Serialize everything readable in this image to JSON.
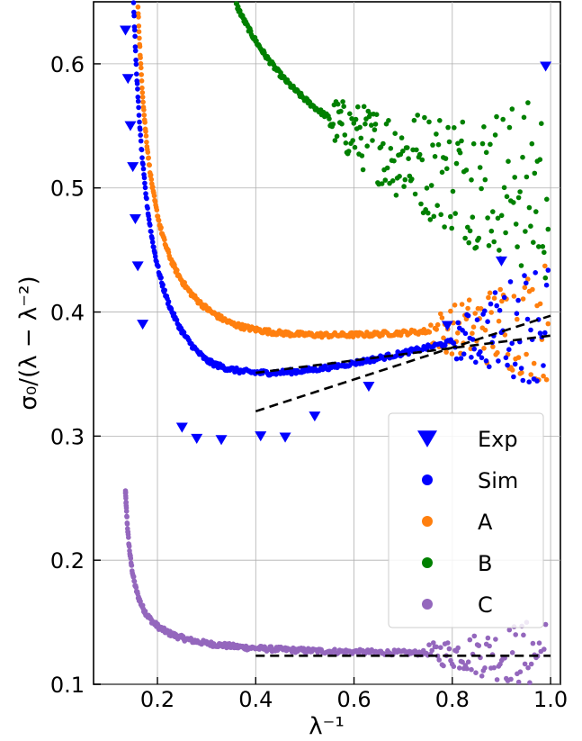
{
  "chart_data": {
    "type": "scatter",
    "xlabel": "λ⁻¹",
    "ylabel": "σ₀/(λ − λ⁻²)",
    "xlim": [
      0.07,
      1.02
    ],
    "ylim": [
      0.1,
      0.65
    ],
    "x_ticks": [
      0.2,
      0.4,
      0.6,
      0.8,
      1.0
    ],
    "x_tick_labels": [
      "0.2",
      "0.4",
      "0.6",
      "0.8",
      "1.0"
    ],
    "y_ticks": [
      0.1,
      0.2,
      0.3,
      0.4,
      0.5,
      0.6
    ],
    "y_tick_labels": [
      "0.1",
      "0.2",
      "0.3",
      "0.4",
      "0.5",
      "0.6"
    ],
    "grid": true,
    "legend_position": "lower-right",
    "series": [
      {
        "name": "Exp",
        "marker": "triangle-down",
        "color": "#0000ff",
        "x": [
          0.135,
          0.14,
          0.145,
          0.15,
          0.155,
          0.16,
          0.17,
          0.25,
          0.28,
          0.33,
          0.41,
          0.46,
          0.52,
          0.63,
          0.79,
          0.9,
          0.99
        ],
        "y": [
          0.627,
          0.588,
          0.55,
          0.517,
          0.475,
          0.437,
          0.39,
          0.307,
          0.298,
          0.297,
          0.3,
          0.299,
          0.316,
          0.34,
          0.389,
          0.441,
          0.598
        ]
      },
      {
        "name": "Sim",
        "marker": "circle",
        "color": "#0000ff",
        "curve": {
          "a": 0.011,
          "x0": 0.12,
          "c": 0.3,
          "ref": 0.3,
          "s": 0.12,
          "xmin": 0.145,
          "xmax": 0.995,
          "noise_from": 0.8,
          "noise": 0.045
        }
      },
      {
        "name": "A",
        "marker": "circle",
        "color": "#ff7f0e",
        "curve": {
          "a": 0.009,
          "x0": 0.13,
          "c": 0.35,
          "ref": 0.35,
          "s": 0.05,
          "xmin": 0.155,
          "xmax": 0.995,
          "noise_from": 0.75,
          "noise": 0.04
        }
      },
      {
        "name": "B",
        "marker": "circle",
        "color": "#008000",
        "curve": {
          "a": 0.05,
          "x0": 0.12,
          "c": 0.44,
          "ref": 0.0,
          "s": 0.0,
          "xmin": 0.27,
          "xmax": 0.995,
          "noise_from": 0.55,
          "noise": 0.06
        }
      },
      {
        "name": "C",
        "marker": "circle",
        "color": "#9467bd",
        "curve": {
          "a": 0.002,
          "x0": 0.12,
          "c": 0.122,
          "ref": 0.0,
          "s": 0.0,
          "xmin": 0.135,
          "xmax": 0.99,
          "noise_from": 0.75,
          "noise": 0.025
        }
      }
    ],
    "fit_lines": [
      {
        "x": [
          0.4,
          1.0
        ],
        "y": [
          0.351,
          0.381
        ]
      },
      {
        "x": [
          0.4,
          1.0
        ],
        "y": [
          0.32,
          0.397
        ]
      },
      {
        "x": [
          0.4,
          1.0
        ],
        "y": [
          0.123,
          0.123
        ]
      }
    ]
  }
}
